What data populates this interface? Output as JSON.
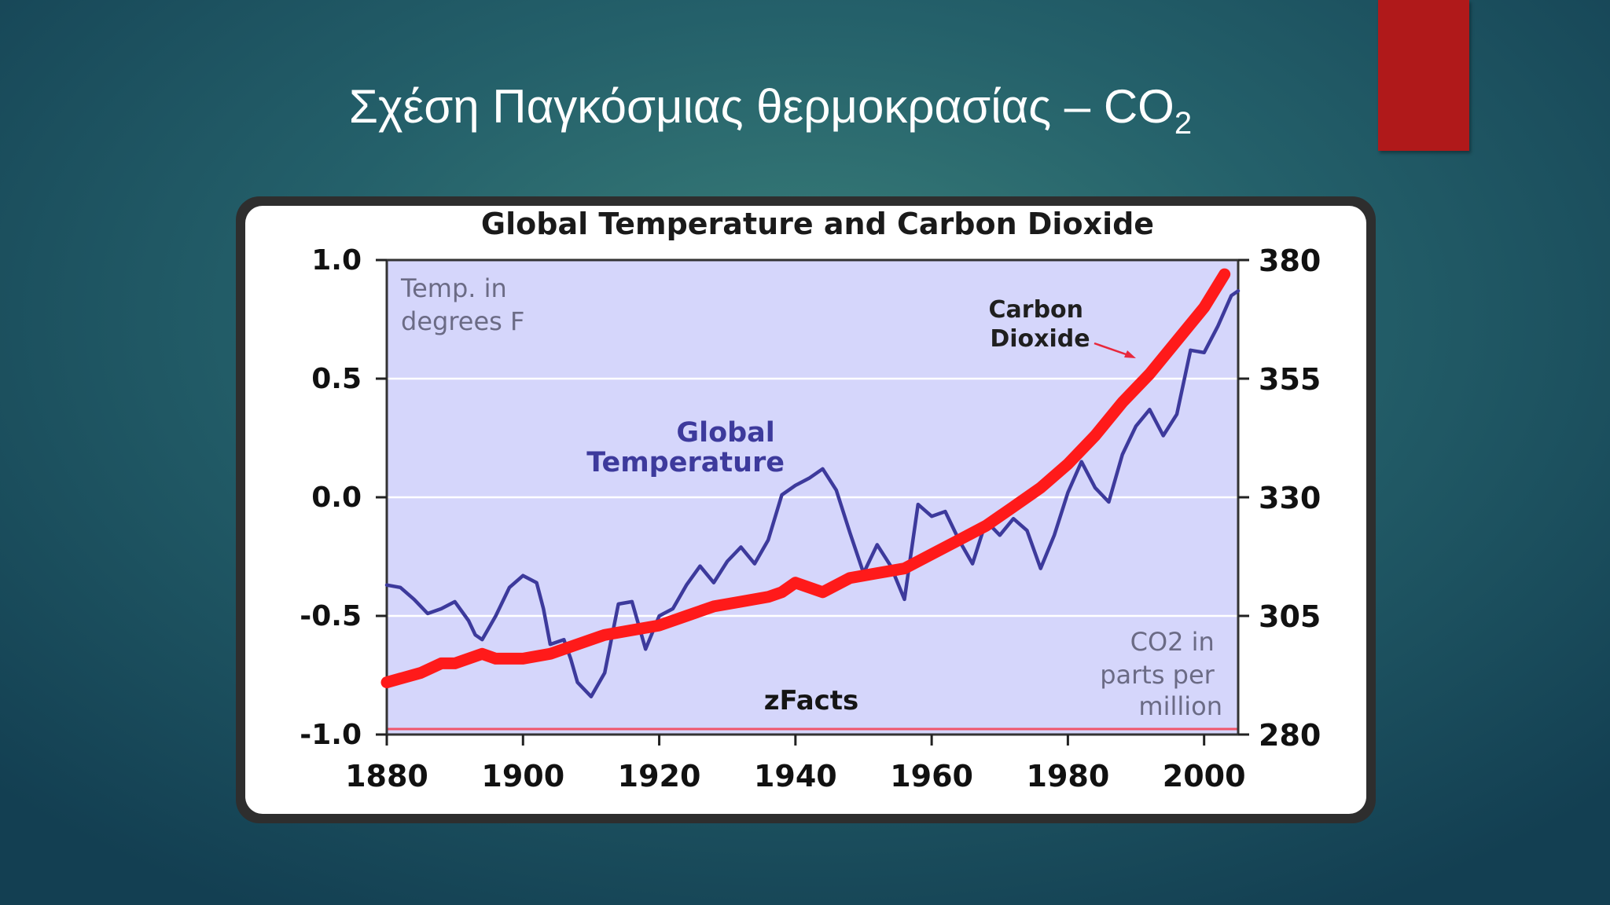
{
  "slide": {
    "title_main": "Σχέση Παγκόσμιας θερμοκρασίας – CO",
    "title_subscript": "2",
    "accent_color": "#b0191a"
  },
  "chart_data": {
    "type": "line",
    "title": "Global Temperature and Carbon Dioxide",
    "x": {
      "range": [
        1880,
        2005
      ],
      "ticks": [
        "1880",
        "1900",
        "1920",
        "1940",
        "1960",
        "1980",
        "2000"
      ],
      "tick_values": [
        1880,
        1900,
        1920,
        1940,
        1960,
        1980,
        2000
      ]
    },
    "y_left": {
      "range": [
        -1.0,
        1.0
      ],
      "ticks": [
        "1.0",
        "0.5",
        "0.0",
        "-0.5",
        "-1.0"
      ],
      "tick_values": [
        1.0,
        0.5,
        0.0,
        -0.5,
        -1.0
      ],
      "label_lines": [
        "Temp. in",
        "degrees F"
      ]
    },
    "y_right": {
      "range": [
        280,
        380
      ],
      "ticks": [
        "380",
        "355",
        "330",
        "305",
        "280"
      ],
      "tick_values": [
        380,
        355,
        330,
        305,
        280
      ],
      "label_lines": [
        "CO2 in",
        "parts per",
        "million"
      ]
    },
    "grid": true,
    "watermark": "zFacts",
    "series": [
      {
        "name": "Global Temperature",
        "label_lines": [
          "Global",
          "Temperature"
        ],
        "axis": "left",
        "color": "#3d3a9c",
        "x": [
          1880,
          1882,
          1884,
          1886,
          1888,
          1890,
          1892,
          1893,
          1894,
          1896,
          1898,
          1900,
          1902,
          1903,
          1904,
          1906,
          1907,
          1908,
          1910,
          1912,
          1914,
          1916,
          1918,
          1920,
          1922,
          1924,
          1926,
          1928,
          1930,
          1932,
          1934,
          1936,
          1938,
          1940,
          1942,
          1944,
          1946,
          1948,
          1950,
          1952,
          1954,
          1956,
          1958,
          1960,
          1962,
          1964,
          1966,
          1968,
          1970,
          1972,
          1974,
          1976,
          1978,
          1980,
          1982,
          1984,
          1986,
          1988,
          1990,
          1992,
          1994,
          1996,
          1998,
          2000,
          2002,
          2004,
          2005
        ],
        "values": [
          -0.37,
          -0.38,
          -0.43,
          -0.49,
          -0.47,
          -0.44,
          -0.52,
          -0.58,
          -0.6,
          -0.5,
          -0.38,
          -0.33,
          -0.36,
          -0.47,
          -0.62,
          -0.6,
          -0.68,
          -0.78,
          -0.84,
          -0.74,
          -0.45,
          -0.44,
          -0.64,
          -0.5,
          -0.47,
          -0.37,
          -0.29,
          -0.36,
          -0.27,
          -0.21,
          -0.28,
          -0.18,
          0.01,
          0.05,
          0.08,
          0.12,
          0.03,
          -0.15,
          -0.32,
          -0.2,
          -0.29,
          -0.43,
          -0.03,
          -0.08,
          -0.06,
          -0.18,
          -0.28,
          -0.1,
          -0.16,
          -0.09,
          -0.14,
          -0.3,
          -0.16,
          0.02,
          0.15,
          0.04,
          -0.02,
          0.18,
          0.3,
          0.37,
          0.26,
          0.35,
          0.62,
          0.61,
          0.72,
          0.85,
          0.87
        ]
      },
      {
        "name": "Carbon Dioxide",
        "label_lines": [
          "Carbon",
          "Dioxide"
        ],
        "axis": "right",
        "color": "#ff1a1a",
        "x": [
          1880,
          1885,
          1888,
          1890,
          1894,
          1896,
          1898,
          1900,
          1904,
          1908,
          1912,
          1916,
          1920,
          1924,
          1928,
          1932,
          1936,
          1938,
          1940,
          1944,
          1948,
          1952,
          1956,
          1960,
          1964,
          1968,
          1972,
          1976,
          1980,
          1984,
          1988,
          1992,
          1996,
          2000,
          2003
        ],
        "values": [
          291,
          293,
          295,
          295,
          297,
          296,
          296,
          296,
          297,
          299,
          301,
          302,
          303,
          305,
          307,
          308,
          309,
          310,
          312,
          310,
          313,
          314,
          315,
          318,
          321,
          324,
          328,
          332,
          337,
          343,
          350,
          356,
          363,
          370,
          377
        ]
      }
    ]
  }
}
